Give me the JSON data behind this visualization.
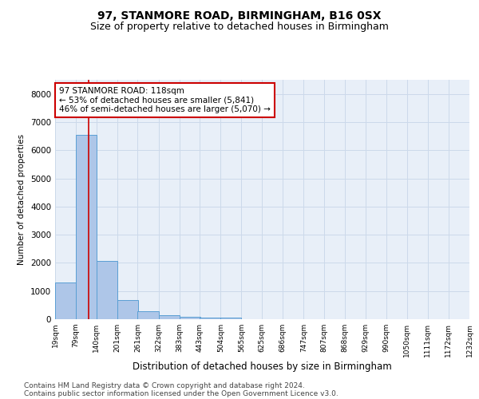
{
  "title1": "97, STANMORE ROAD, BIRMINGHAM, B16 0SX",
  "title2": "Size of property relative to detached houses in Birmingham",
  "xlabel": "Distribution of detached houses by size in Birmingham",
  "ylabel": "Number of detached properties",
  "bar_left_edges": [
    19,
    79,
    140,
    201,
    261,
    322,
    383,
    443,
    504,
    565,
    625,
    686,
    747,
    807,
    868,
    929,
    990,
    1050,
    1111,
    1172
  ],
  "bar_heights": [
    1300,
    6550,
    2080,
    690,
    280,
    140,
    90,
    55,
    60,
    0,
    0,
    0,
    0,
    0,
    0,
    0,
    0,
    0,
    0,
    0
  ],
  "bin_width": 61,
  "bar_color": "#aec6e8",
  "bar_edge_color": "#5a9fd4",
  "bar_edge_width": 0.7,
  "grid_color": "#ccd9ea",
  "background_color": "#e8eff8",
  "vline_x": 118,
  "vline_color": "#cc0000",
  "annotation_text": "97 STANMORE ROAD: 118sqm\n← 53% of detached houses are smaller (5,841)\n46% of semi-detached houses are larger (5,070) →",
  "annotation_box_color": "#ffffff",
  "annotation_box_edge_color": "#cc0000",
  "ylim": [
    0,
    8500
  ],
  "yticks": [
    0,
    1000,
    2000,
    3000,
    4000,
    5000,
    6000,
    7000,
    8000
  ],
  "tick_labels": [
    "19sqm",
    "79sqm",
    "140sqm",
    "201sqm",
    "261sqm",
    "322sqm",
    "383sqm",
    "443sqm",
    "504sqm",
    "565sqm",
    "625sqm",
    "686sqm",
    "747sqm",
    "807sqm",
    "868sqm",
    "929sqm",
    "990sqm",
    "1050sqm",
    "1111sqm",
    "1172sqm",
    "1232sqm"
  ],
  "footnote1": "Contains HM Land Registry data © Crown copyright and database right 2024.",
  "footnote2": "Contains public sector information licensed under the Open Government Licence v3.0.",
  "title1_fontsize": 10,
  "title2_fontsize": 9,
  "xlabel_fontsize": 8.5,
  "ylabel_fontsize": 7.5,
  "tick_fontsize": 6.5,
  "annotation_fontsize": 7.5,
  "footnote_fontsize": 6.5
}
